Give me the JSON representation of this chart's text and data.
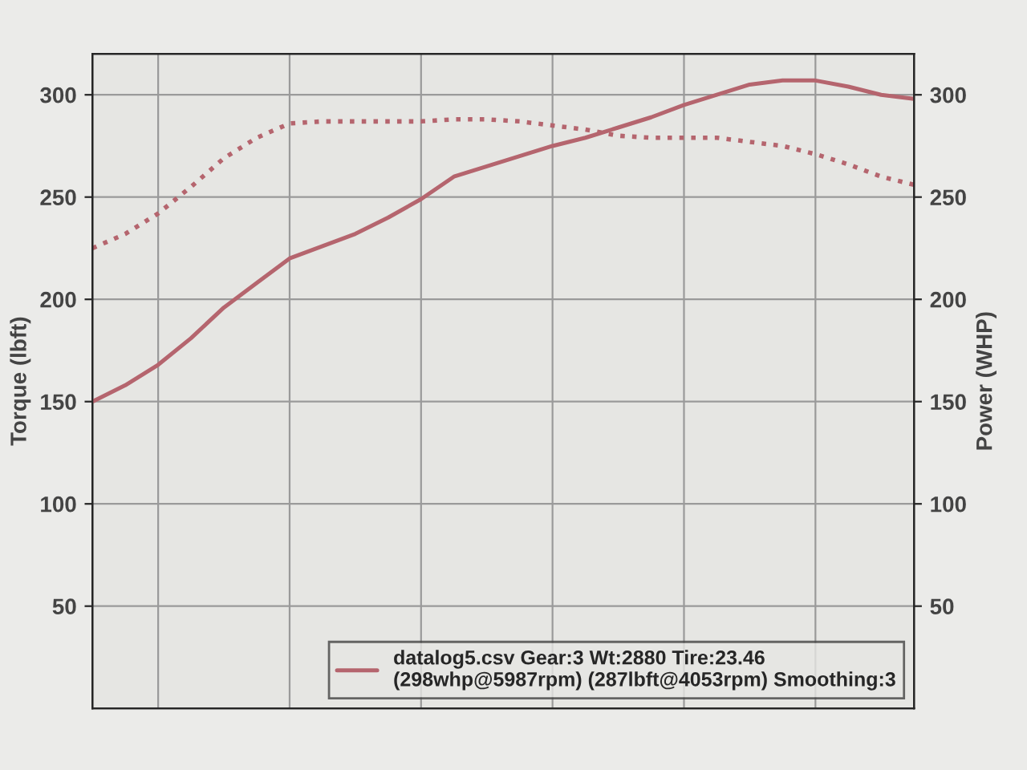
{
  "chart_data": {
    "type": "line",
    "ylabel": "Torque (lbft)",
    "y2label": "Power (WHP)",
    "categories": [
      null,
      null,
      null,
      null,
      null,
      null,
      null,
      null,
      null,
      null,
      null,
      null,
      null,
      null,
      null,
      null,
      null,
      null,
      null,
      null,
      null,
      null,
      null,
      null,
      null,
      null
    ],
    "series": [
      {
        "color": "#b5656e",
        "line_style": "dotted",
        "values": [
          225,
          232,
          242,
          255,
          269,
          279,
          286,
          287,
          287,
          287,
          287,
          288,
          288,
          287,
          285,
          283,
          280,
          279,
          279,
          279,
          277,
          275,
          271,
          266,
          260,
          256
        ]
      },
      {
        "name": "datalog5.csv Gear:3 Wt:2880 Tire:23.46\n(298whp@5987rpm) (287lbft@4053rpm) Smoothing:3",
        "color": "#b5656e",
        "line_style": "solid",
        "axis": "y2",
        "values": [
          150,
          158,
          168,
          181,
          196,
          208,
          220,
          226,
          232,
          240,
          249,
          260,
          265,
          270,
          275,
          279,
          284,
          289,
          295,
          300,
          305,
          307,
          307,
          304,
          300,
          298
        ]
      }
    ],
    "ylim": [
      0,
      320
    ],
    "yticks": [
      50,
      100,
      150,
      200,
      250,
      300
    ],
    "y2lim": [
      0,
      320
    ],
    "y2ticks": [
      50,
      100,
      150,
      200,
      250,
      300
    ],
    "grid": true,
    "legend": "bottom right"
  }
}
